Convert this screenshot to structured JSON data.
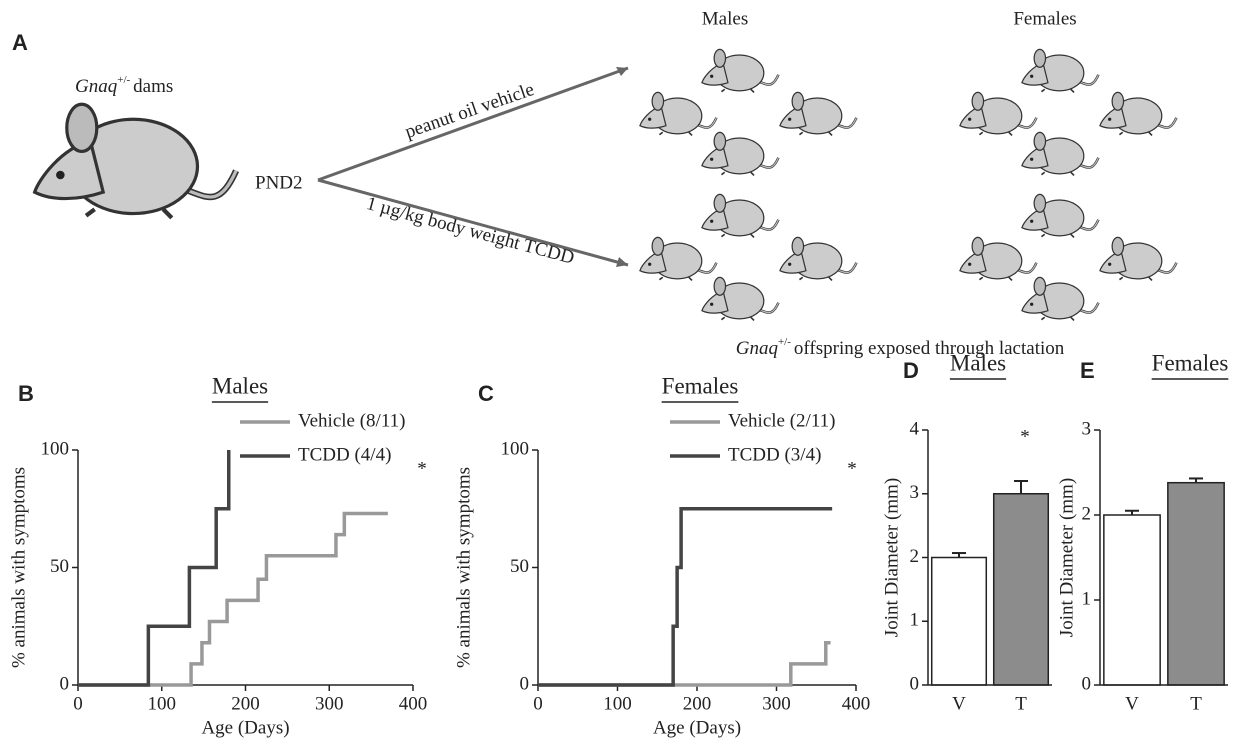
{
  "panel_a": {
    "label": "A",
    "dams_gene": "Gnaq",
    "dams_sup": "+/-",
    "dams_text": "dams",
    "timepoint": "PND2",
    "upper_arrow": "peanut oil vehicle",
    "lower_arrow": "1 µg/kg body weight TCDD",
    "group_males": "Males",
    "group_females": "Females",
    "caption_gene": "Gnaq",
    "caption_sup": "+/-",
    "caption_text": "offspring exposed through lactation"
  },
  "chart_data": [
    {
      "type": "step",
      "label": "B",
      "title": "Males",
      "xlabel": "Age (Days)",
      "ylabel": "% animals with symptoms",
      "xlim": [
        0,
        400
      ],
      "xticks": [
        0,
        100,
        200,
        300,
        400
      ],
      "ylim": [
        0,
        100
      ],
      "yticks": [
        0,
        50,
        100
      ],
      "annotation": "*",
      "series": [
        {
          "name": "Vehicle (8/11)",
          "color": "#999999",
          "x": [
            0,
            135,
            148,
            157,
            178,
            215,
            225,
            308,
            318,
            370
          ],
          "values": [
            0,
            9,
            18,
            27,
            36,
            45,
            55,
            64,
            73,
            73
          ]
        },
        {
          "name": "TCDD (4/4)",
          "color": "#444444",
          "x": [
            0,
            84,
            133,
            165,
            180
          ],
          "values": [
            0,
            25,
            50,
            75,
            100
          ]
        }
      ]
    },
    {
      "type": "step",
      "label": "C",
      "title": "Females",
      "xlabel": "Age (Days)",
      "ylabel": "% animals with symptoms",
      "xlim": [
        0,
        400
      ],
      "xticks": [
        0,
        100,
        200,
        300,
        400
      ],
      "ylim": [
        0,
        100
      ],
      "yticks": [
        0,
        50,
        100
      ],
      "annotation": "*",
      "series": [
        {
          "name": "Vehicle (2/11)",
          "color": "#999999",
          "x": [
            0,
            318,
            362,
            368
          ],
          "values": [
            0,
            9,
            18,
            18
          ]
        },
        {
          "name": "TCDD (3/4)",
          "color": "#444444",
          "x": [
            0,
            170,
            175,
            180,
            370
          ],
          "values": [
            0,
            25,
            50,
            75,
            75
          ]
        }
      ]
    },
    {
      "type": "bar",
      "label": "D",
      "title": "Males",
      "ylabel": "Joint Diameter (mm)",
      "categories": [
        "V",
        "T"
      ],
      "values": [
        2.0,
        3.0
      ],
      "errors": [
        0.07,
        0.2
      ],
      "colors": [
        "#ffffff",
        "#8c8c8c"
      ],
      "ylim": [
        0,
        4
      ],
      "yticks": [
        0,
        1,
        2,
        3,
        4
      ],
      "annotation": "*"
    },
    {
      "type": "bar",
      "label": "E",
      "title": "Females",
      "ylabel": "Joint Diameter (mm)",
      "categories": [
        "V",
        "T"
      ],
      "values": [
        2.0,
        2.38
      ],
      "errors": [
        0.05,
        0.05
      ],
      "colors": [
        "#ffffff",
        "#8c8c8c"
      ],
      "ylim": [
        0,
        3
      ],
      "yticks": [
        0,
        1,
        2,
        3
      ]
    }
  ]
}
